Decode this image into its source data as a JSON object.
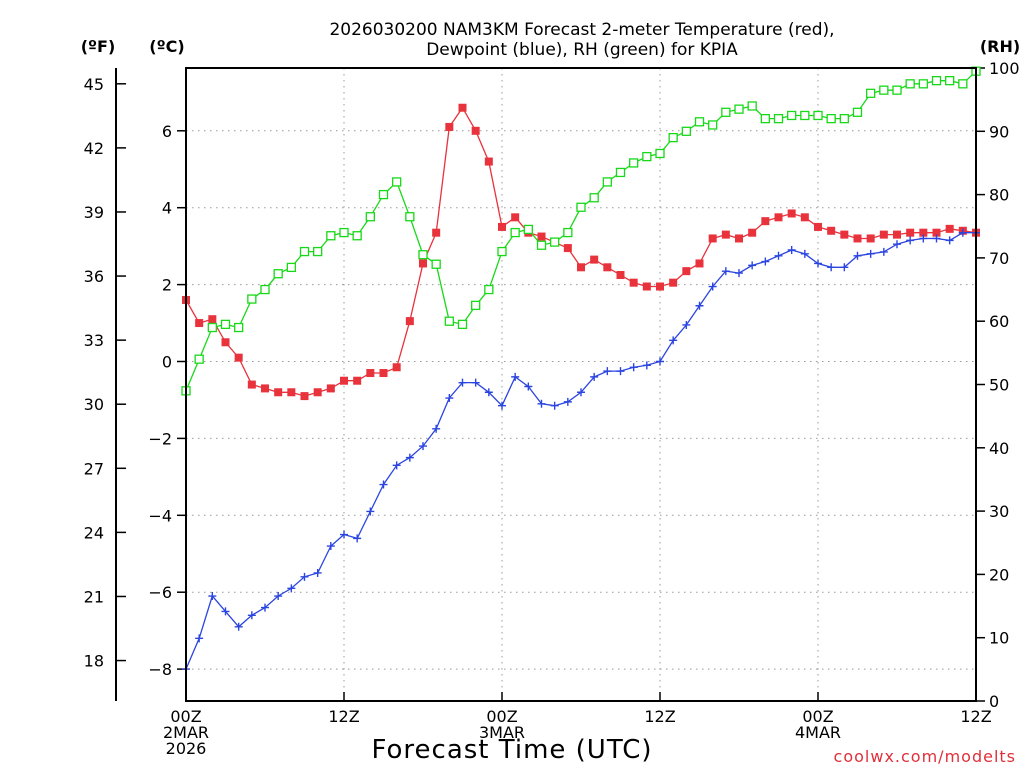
{
  "title_line1": "2026030200 NAM3KM Forecast 2-meter Temperature (red),",
  "title_line2": "Dewpoint (blue), RH (green) for KPIA",
  "unit_f": "(ºF)",
  "unit_c": "(ºC)",
  "unit_rh": "(RH)",
  "xlabel": "Forecast Time (UTC)",
  "credit": "coolwx.com/modelts",
  "colors": {
    "temperature": "#e8323c",
    "dewpoint": "#2b45e0",
    "rh": "#17d917"
  },
  "chart_data": {
    "type": "line",
    "title": "2026030200 NAM3KM Forecast 2-meter Temperature (red), Dewpoint (blue), RH (green) for KPIA",
    "xlabel": "Forecast Time (UTC)",
    "x_unit": "forecast hour",
    "xlim": [
      0,
      60
    ],
    "x_ticks": [
      {
        "hour": 0,
        "lines": [
          "00Z",
          "2MAR",
          "2026"
        ]
      },
      {
        "hour": 12,
        "lines": [
          "12Z"
        ]
      },
      {
        "hour": 24,
        "lines": [
          "00Z",
          "3MAR"
        ]
      },
      {
        "hour": 36,
        "lines": [
          "12Z"
        ]
      },
      {
        "hour": 48,
        "lines": [
          "00Z",
          "4MAR"
        ]
      },
      {
        "hour": 60,
        "lines": [
          "12Z"
        ]
      }
    ],
    "y_left_c": {
      "label": "(ºC)",
      "range": [
        -9,
        7.5
      ],
      "ticks": [
        -8,
        -6,
        -4,
        -2,
        0,
        2,
        4,
        6
      ]
    },
    "y_left_f": {
      "label": "(ºF)",
      "ticks": [
        18,
        21,
        24,
        27,
        30,
        33,
        36,
        39,
        42,
        45
      ]
    },
    "y_right_rh": {
      "label": "(RH)",
      "range": [
        0,
        100
      ],
      "ticks": [
        0,
        10,
        20,
        30,
        40,
        50,
        60,
        70,
        80,
        90,
        100
      ]
    },
    "series": [
      {
        "name": "Temperature (red)",
        "axis": "c",
        "marker": "filled-square",
        "color": "#e8323c",
        "x": [
          0,
          1,
          2,
          3,
          4,
          5,
          6,
          7,
          8,
          9,
          10,
          11,
          12,
          13,
          14,
          15,
          16,
          17,
          18,
          19,
          20,
          21,
          22,
          23,
          24,
          25,
          26,
          27,
          28,
          29,
          30,
          31,
          32,
          33,
          34,
          35,
          36,
          37,
          38,
          39,
          40,
          41,
          42,
          43,
          44,
          45,
          46,
          47,
          48,
          49,
          50,
          51,
          52,
          53,
          54,
          55,
          56,
          57,
          58,
          59,
          60
        ],
        "values": [
          1.6,
          1.0,
          1.1,
          0.5,
          0.1,
          -0.6,
          -0.7,
          -0.8,
          -0.8,
          -0.9,
          -0.8,
          -0.7,
          -0.5,
          -0.5,
          -0.3,
          -0.3,
          -0.15,
          1.05,
          2.55,
          3.35,
          6.1,
          6.6,
          6.0,
          5.2,
          3.5,
          3.75,
          3.35,
          3.25,
          3.1,
          2.95,
          2.45,
          2.65,
          2.45,
          2.25,
          2.05,
          1.95,
          1.95,
          2.05,
          2.35,
          2.55,
          3.2,
          3.3,
          3.2,
          3.35,
          3.65,
          3.75,
          3.85,
          3.75,
          3.5,
          3.4,
          3.3,
          3.2,
          3.2,
          3.3,
          3.3,
          3.35,
          3.35,
          3.35,
          3.45,
          3.4,
          3.35
        ]
      },
      {
        "name": "Dewpoint (blue)",
        "axis": "c",
        "marker": "plus",
        "color": "#2b45e0",
        "x": [
          0,
          1,
          2,
          3,
          4,
          5,
          6,
          7,
          8,
          9,
          10,
          11,
          12,
          13,
          14,
          15,
          16,
          17,
          18,
          19,
          20,
          21,
          22,
          23,
          24,
          25,
          26,
          27,
          28,
          29,
          30,
          31,
          32,
          33,
          34,
          35,
          36,
          37,
          38,
          39,
          40,
          41,
          42,
          43,
          44,
          45,
          46,
          47,
          48,
          49,
          50,
          51,
          52,
          53,
          54,
          55,
          56,
          57,
          58,
          59,
          60
        ],
        "values": [
          -8.0,
          -7.2,
          -6.1,
          -6.5,
          -6.9,
          -6.6,
          -6.4,
          -6.1,
          -5.9,
          -5.6,
          -5.5,
          -4.8,
          -4.5,
          -4.6,
          -3.9,
          -3.2,
          -2.7,
          -2.5,
          -2.2,
          -1.75,
          -0.95,
          -0.55,
          -0.55,
          -0.8,
          -1.15,
          -0.4,
          -0.65,
          -1.1,
          -1.15,
          -1.05,
          -0.8,
          -0.4,
          -0.25,
          -0.25,
          -0.15,
          -0.1,
          0.0,
          0.55,
          0.95,
          1.45,
          1.95,
          2.35,
          2.3,
          2.5,
          2.6,
          2.75,
          2.9,
          2.8,
          2.55,
          2.45,
          2.45,
          2.75,
          2.8,
          2.85,
          3.05,
          3.15,
          3.2,
          3.2,
          3.15,
          3.35,
          3.35
        ]
      },
      {
        "name": "RH (green)",
        "axis": "rh",
        "marker": "open-square",
        "color": "#17d917",
        "x": [
          0,
          1,
          2,
          3,
          4,
          5,
          6,
          7,
          8,
          9,
          10,
          11,
          12,
          13,
          14,
          15,
          16,
          17,
          18,
          19,
          20,
          21,
          22,
          23,
          24,
          25,
          26,
          27,
          28,
          29,
          30,
          31,
          32,
          33,
          34,
          35,
          36,
          37,
          38,
          39,
          40,
          41,
          42,
          43,
          44,
          45,
          46,
          47,
          48,
          49,
          50,
          51,
          52,
          53,
          54,
          55,
          56,
          57,
          58,
          59,
          60
        ],
        "values": [
          49,
          54,
          59,
          59.5,
          59,
          63.5,
          65,
          67.5,
          68.5,
          71,
          71,
          73.5,
          74,
          73.5,
          76.5,
          80,
          82,
          76.5,
          70.5,
          69,
          60,
          59.5,
          62.5,
          65,
          71,
          74,
          74.5,
          72,
          72.5,
          74,
          78,
          79.5,
          82,
          83.5,
          85,
          86,
          86.5,
          89,
          90,
          91.5,
          91,
          93,
          93.5,
          94,
          92,
          92,
          92.5,
          92.5,
          92.5,
          92,
          92,
          93,
          96,
          96.5,
          96.5,
          97.5,
          97.5,
          98,
          98,
          97.5,
          99.5
        ]
      }
    ]
  }
}
